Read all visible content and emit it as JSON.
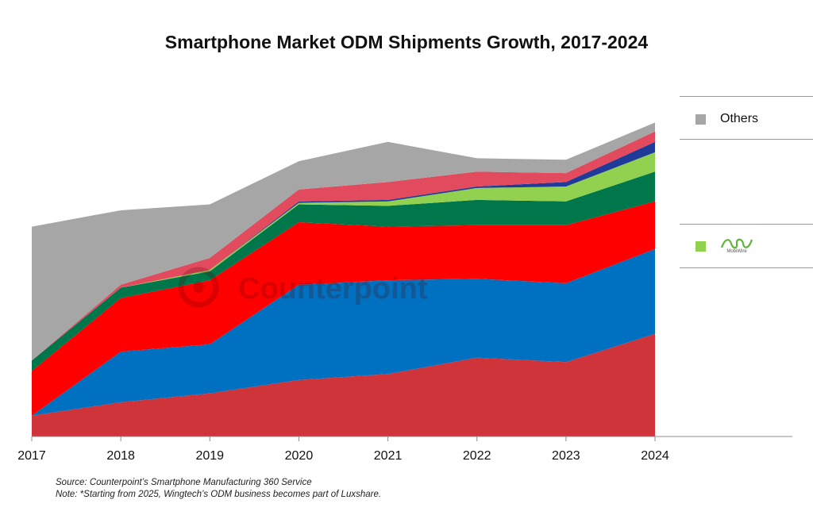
{
  "title": "Smartphone Market ODM Shipments Growth, 2017-2024",
  "source_lines": [
    "Source: Counterpoint’s Smartphone Manufacturing 360 Service",
    "Note: *Starting from 2025, Wingtech’s ODM business becomes part of Luxshare."
  ],
  "watermark": "Counterpoint",
  "legend": [
    {
      "label": "Others",
      "color": "#a6a6a6"
    },
    {
      "label": "",
      "logo_text": "MobiWire",
      "color": "#92d050"
    }
  ],
  "chart_data": {
    "type": "area",
    "stacked": true,
    "title": "Smartphone Market ODM Shipments Growth, 2017-2024",
    "xlabel": "",
    "ylabel": "",
    "categories": [
      "2017",
      "2018",
      "2019",
      "2020",
      "2021",
      "2022",
      "2023",
      "2024"
    ],
    "y_axis_shown": false,
    "grid": false,
    "legend_position": "right",
    "series": [
      {
        "color": "#d0343b",
        "values": [
          7,
          11.5,
          14.5,
          19,
          21,
          26.5,
          25,
          34.5
        ]
      },
      {
        "color": "#0070c0",
        "values": [
          0,
          17,
          16.5,
          32,
          31.5,
          26.5,
          26.5,
          28.5
        ]
      },
      {
        "color": "#ff0000",
        "values": [
          15,
          18,
          21.5,
          21,
          18,
          18,
          19.5,
          16
        ]
      },
      {
        "color": "#00764b",
        "values": [
          3.5,
          3.5,
          3,
          6,
          7,
          8.5,
          8,
          10
        ]
      },
      {
        "color": "#92d050",
        "values": [
          0,
          0,
          0.5,
          0.5,
          1.5,
          4,
          5,
          6.5
        ]
      },
      {
        "color": "#203a9a",
        "values": [
          0,
          0,
          0,
          0.5,
          0.5,
          0.5,
          1.5,
          3.5
        ]
      },
      {
        "color": "#e24a5e",
        "values": [
          0,
          1,
          4,
          4,
          6,
          5,
          3,
          3.5
        ]
      },
      {
        "name": "Others",
        "color": "#a6a6a6",
        "values": [
          45,
          25,
          18,
          9.5,
          13.5,
          4.5,
          4.5,
          3
        ]
      }
    ]
  }
}
